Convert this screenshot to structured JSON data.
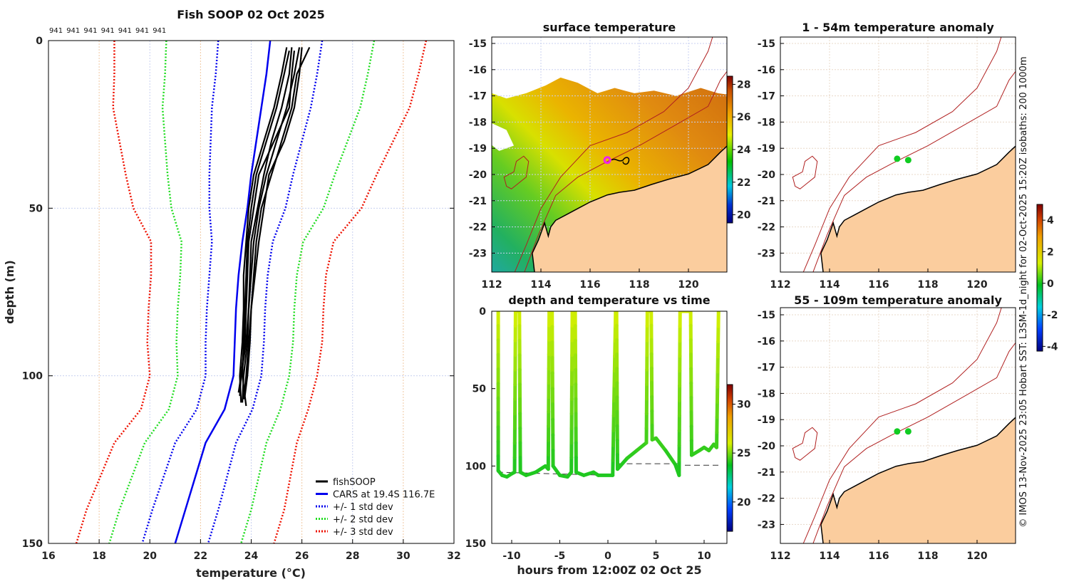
{
  "figure_title": "Fish SOOP 02 Oct 2025",
  "credit": "© IMOS 13-Nov-2025 23:05 Hobart SST: L3SM-1d_night for 02-Oct-2025 15:20Z isobaths: 200  1000m",
  "colors": {
    "fishsoop": "#000000",
    "cars": "#0000ee",
    "std1": "#0000ee",
    "std2": "#22dd22",
    "std3": "#ee1100",
    "land": "#fbcd9e",
    "isobath": "#b02020",
    "anomaly_dot": "#11cc22",
    "ship_marker": "#ee22ee"
  },
  "chart_data": [
    {
      "type": "line",
      "title": "Fish SOOP 02 Oct 2025",
      "xlabel": "temperature (°C)",
      "ylabel": "depth (m)",
      "xlim": [
        16,
        32
      ],
      "ylim": [
        150,
        0
      ],
      "xticks": [
        "16",
        "18",
        "20",
        "22",
        "24",
        "26",
        "28",
        "30",
        "32"
      ],
      "yticks": [
        "0",
        "50",
        "100",
        "150"
      ],
      "profile_ids": [
        "941",
        "941",
        "941",
        "941",
        "941",
        "941",
        "941"
      ],
      "legend": {
        "placement": "bottom-right",
        "entries": [
          "fishSOOP",
          "CARS at 19.4S 116.7E",
          "+/- 1 std dev",
          "+/- 2 std dev",
          "+/- 3 std dev"
        ]
      },
      "cars": {
        "depth": [
          0,
          10,
          20,
          30,
          40,
          50,
          60,
          70,
          80,
          90,
          100,
          110,
          120,
          130,
          140,
          150
        ],
        "mean": [
          24.75,
          24.6,
          24.4,
          24.2,
          24.0,
          23.85,
          23.65,
          23.5,
          23.4,
          23.35,
          23.3,
          22.95,
          22.2,
          21.8,
          21.4,
          21.0
        ],
        "std": [
          2.05,
          2.0,
          1.95,
          1.8,
          1.65,
          1.5,
          1.2,
          1.15,
          1.15,
          1.15,
          1.1,
          1.1,
          1.2,
          1.25,
          1.3,
          1.3
        ]
      },
      "fishsoop_profiles": [
        {
          "depth": [
            2,
            10,
            20,
            30,
            40,
            50,
            60,
            70,
            80,
            90,
            100,
            108
          ],
          "temp": [
            25.6,
            25.5,
            25.2,
            24.8,
            24.5,
            24.25,
            24.0,
            23.95,
            23.9,
            23.85,
            23.7,
            23.65
          ]
        },
        {
          "depth": [
            2,
            10,
            20,
            30,
            40,
            50,
            60,
            70,
            80,
            90,
            100,
            106
          ],
          "temp": [
            25.9,
            25.7,
            25.4,
            25.0,
            24.6,
            24.3,
            24.1,
            24.0,
            23.9,
            23.8,
            23.6,
            23.55
          ]
        },
        {
          "depth": [
            3,
            10,
            20,
            30,
            40,
            50,
            60,
            70,
            80,
            90,
            100,
            109
          ],
          "temp": [
            25.5,
            25.3,
            25.0,
            24.6,
            24.2,
            24.0,
            23.85,
            23.8,
            23.75,
            23.7,
            23.65,
            23.8
          ]
        },
        {
          "depth": [
            2,
            10,
            20,
            30,
            40,
            50,
            60,
            70,
            80,
            90,
            100,
            107
          ],
          "temp": [
            26.3,
            25.8,
            25.6,
            25.2,
            24.8,
            24.4,
            24.2,
            24.1,
            24.0,
            23.9,
            23.8,
            23.7
          ]
        },
        {
          "depth": [
            3,
            10,
            20,
            30,
            40,
            50,
            60,
            70,
            80,
            90,
            100,
            105
          ],
          "temp": [
            25.7,
            25.6,
            25.5,
            24.9,
            24.3,
            24.1,
            23.9,
            23.85,
            23.8,
            23.75,
            23.6,
            23.5
          ]
        },
        {
          "depth": [
            2,
            10,
            20,
            30,
            40,
            50,
            60,
            70,
            80,
            90,
            100,
            108
          ],
          "temp": [
            25.4,
            25.2,
            24.9,
            24.5,
            24.1,
            23.9,
            23.8,
            23.7,
            23.7,
            23.65,
            23.55,
            23.6
          ]
        },
        {
          "depth": [
            2,
            10,
            20,
            30,
            40,
            50,
            60,
            70,
            80,
            90,
            100,
            106
          ],
          "temp": [
            26.0,
            25.9,
            25.7,
            25.3,
            24.7,
            24.5,
            24.3,
            24.15,
            24.0,
            23.95,
            23.85,
            23.75
          ]
        }
      ]
    },
    {
      "type": "heatmap",
      "title": "surface temperature",
      "xlim": [
        112,
        121.6
      ],
      "ylim": [
        -23.7,
        -14.8
      ],
      "xticks": [
        "112",
        "114",
        "116",
        "118",
        "120"
      ],
      "yticks": [
        "-15",
        "-16",
        "-17",
        "-18",
        "-19",
        "-20",
        "-21",
        "-22",
        "-23"
      ],
      "colorbar": {
        "range": [
          19.5,
          28.5
        ],
        "ticks": [
          "20",
          "22",
          "24",
          "26",
          "28"
        ]
      },
      "ship_track": {
        "lon": 116.7,
        "lat": -19.45
      }
    },
    {
      "type": "line",
      "title": "depth and temperature vs time",
      "xlabel": "hours from 12:00Z 02 Oct 25",
      "xlim": [
        -12,
        12.4
      ],
      "ylim": [
        150,
        0
      ],
      "xticks": [
        "-10",
        "-5",
        "0",
        "5",
        "10"
      ],
      "yticks": [
        "0",
        "50",
        "100",
        "150"
      ],
      "colorbar": {
        "range": [
          17,
          32
        ],
        "ticks": [
          "20",
          "25",
          "30"
        ]
      },
      "hours": [
        -11.4,
        -11.4,
        -11,
        -10.5,
        -10,
        -9.7,
        -9.6,
        -9.2,
        -9.1,
        -8.5,
        -7.5,
        -6.5,
        -6.2,
        -6.1,
        -5.8,
        -5.7,
        -5,
        -4.2,
        -3.8,
        -3.7,
        -3.4,
        -3.3,
        -2.5,
        -1.5,
        -1,
        0.5,
        0.8,
        0.9,
        1,
        2,
        3,
        4,
        4.1,
        4.5,
        4.6,
        5,
        6,
        7,
        7.4,
        7.5,
        8.6,
        8.7,
        9.5,
        10,
        10.5,
        11,
        11.3,
        11.5
      ],
      "depth": [
        0,
        103,
        106,
        107,
        105,
        104,
        0,
        0,
        104,
        106,
        104,
        100,
        102,
        0,
        0,
        100,
        106,
        107,
        104,
        0,
        0,
        104,
        106,
        104,
        106,
        106,
        0,
        0,
        102,
        95,
        90,
        85,
        0,
        0,
        83,
        82,
        90,
        99,
        106,
        0,
        0,
        93,
        90,
        88,
        90,
        86,
        88,
        0
      ],
      "bottom_depth": {
        "hours": [
          -11.5,
          0,
          1,
          7.5,
          8,
          11.5
        ],
        "depth": [
          104,
          106,
          98.5,
          98.5,
          99.5,
          99.5
        ]
      }
    },
    {
      "type": "heatmap",
      "title": "1 - 54m temperature anomaly",
      "xticks": [
        "112",
        "114",
        "116",
        "118",
        "120"
      ],
      "yticks": [
        "-15",
        "-16",
        "-17",
        "-18",
        "-19",
        "-20",
        "-21",
        "-22",
        "-23"
      ],
      "points": [
        {
          "lon": 116.75,
          "lat": -19.4,
          "anomaly": 0.1
        },
        {
          "lon": 117.2,
          "lat": -19.45,
          "anomaly": 0.1
        }
      ]
    },
    {
      "type": "heatmap",
      "title": "55 - 109m temperature anomaly",
      "xticks": [
        "112",
        "114",
        "116",
        "118",
        "120"
      ],
      "yticks": [
        "-15",
        "-16",
        "-17",
        "-18",
        "-19",
        "-20",
        "-21",
        "-22",
        "-23"
      ],
      "points": [
        {
          "lon": 116.75,
          "lat": -19.45,
          "anomaly": 0.1
        },
        {
          "lon": 117.2,
          "lat": -19.45,
          "anomaly": 0.1
        }
      ],
      "colorbar": {
        "range": [
          -4.3,
          5
        ],
        "ticks": [
          "4",
          "2",
          "0",
          "-2",
          "-4"
        ]
      }
    }
  ]
}
